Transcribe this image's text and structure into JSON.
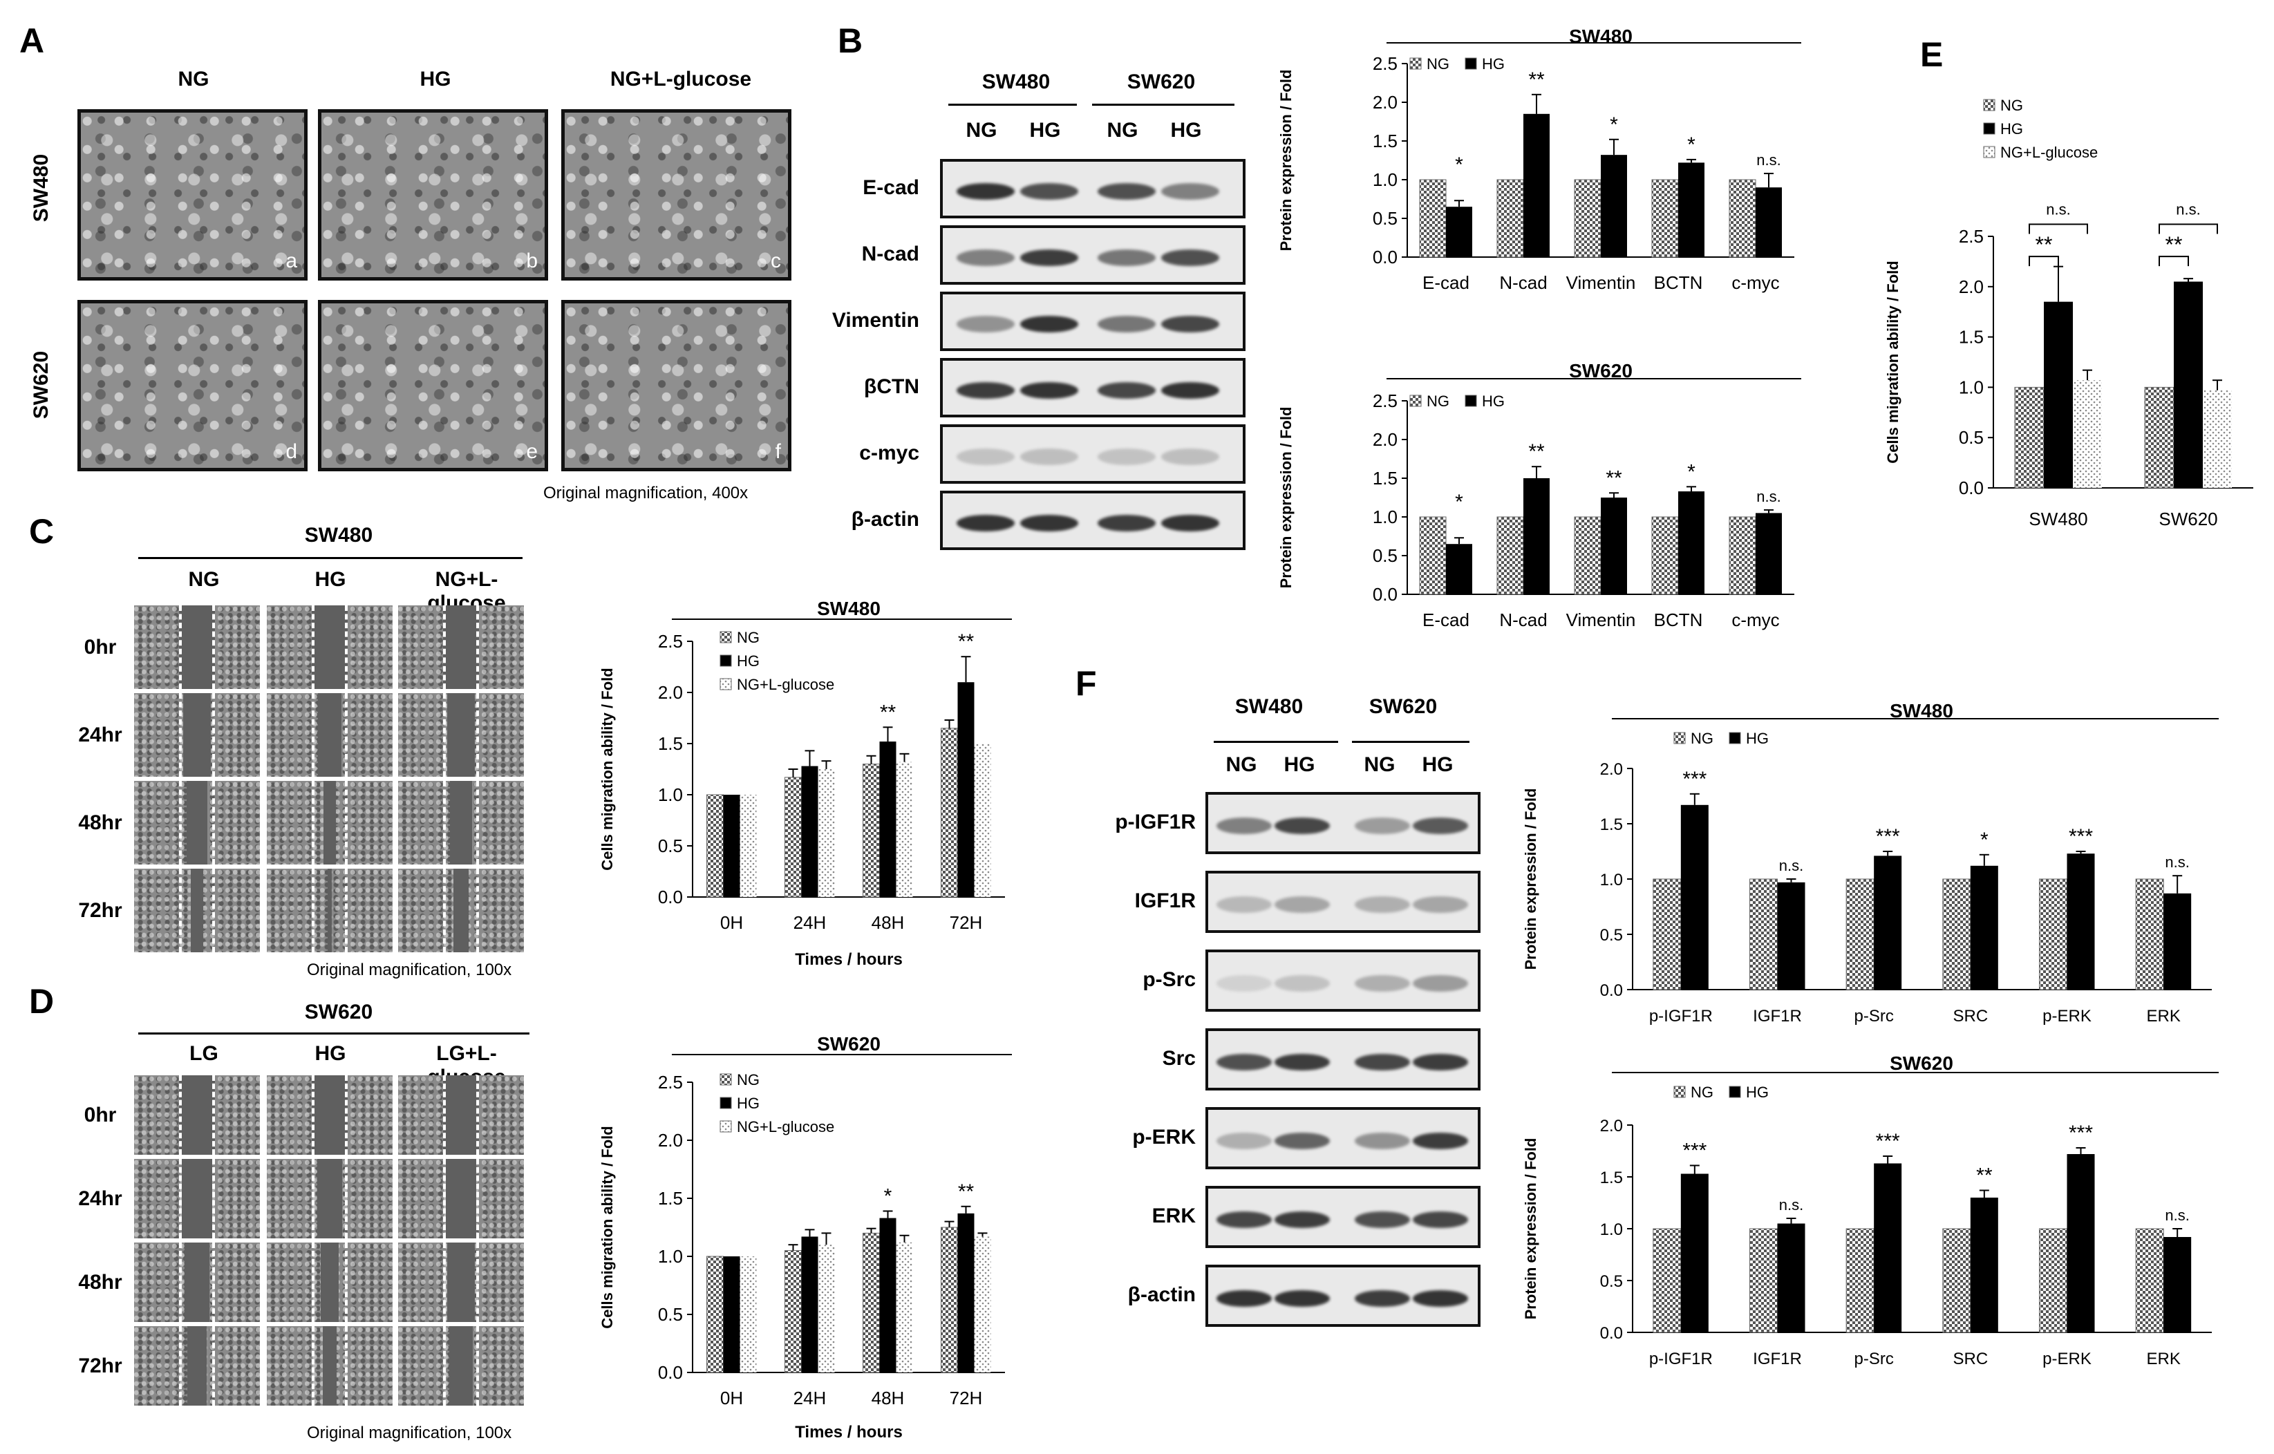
{
  "panel_letters": [
    "A",
    "B",
    "C",
    "D",
    "E",
    "F"
  ],
  "panelA": {
    "col_headers": [
      "NG",
      "HG",
      "NG+L-glucose"
    ],
    "row_headers": [
      "SW480",
      "SW620"
    ],
    "tile_letters": [
      "a",
      "b",
      "c",
      "d",
      "e",
      "f"
    ],
    "note": "Original magnification, 400x"
  },
  "panelB": {
    "groups": [
      "SW480",
      "SW620"
    ],
    "lanes": [
      "NG",
      "HG",
      "NG",
      "HG"
    ],
    "rows": [
      "E-cad",
      "N-cad",
      "Vimentin",
      "βCTN",
      "c-myc",
      "β-actin"
    ]
  },
  "panelC": {
    "title": "SW480",
    "cols": [
      "NG",
      "HG",
      "NG+L-glucose"
    ],
    "rows": [
      "0hr",
      "24hr",
      "48hr",
      "72hr"
    ],
    "note": "Original magnification, 100x"
  },
  "panelD": {
    "title": "SW620",
    "cols": [
      "LG",
      "HG",
      "LG+L-glucose"
    ],
    "rows": [
      "0hr",
      "24hr",
      "48hr",
      "72hr"
    ],
    "note": "Original magnification, 100x"
  },
  "panelF": {
    "groups": [
      "SW480",
      "SW620"
    ],
    "lanes": [
      "NG",
      "HG",
      "NG",
      "HG"
    ],
    "rows": [
      "p-IGF1R",
      "IGF1R",
      "p-Src",
      "Src",
      "p-ERK",
      "ERK",
      "β-actin"
    ]
  },
  "colors": {
    "ng_fill": "#9a9a9a",
    "hg_fill": "#000000",
    "lglu_fill": "#dcdcdc"
  },
  "chart_data": [
    {
      "id": "B-SW480",
      "type": "bar",
      "title": "SW480",
      "ylabel": "Protein expression / Fold",
      "categories": [
        "E-cad",
        "N-cad",
        "Vimentin",
        "BCTN",
        "c-myc"
      ],
      "ylim": [
        0,
        2.5
      ],
      "yticks": [
        "0.0",
        "0.5",
        "1.0",
        "1.5",
        "2.0",
        "2.5"
      ],
      "series": [
        {
          "name": "NG",
          "values": [
            1,
            1,
            1,
            1,
            1
          ]
        },
        {
          "name": "HG",
          "values": [
            0.65,
            1.85,
            1.32,
            1.22,
            0.9
          ],
          "errors": [
            0.08,
            0.25,
            0.2,
            0.04,
            0.18
          ]
        }
      ],
      "annotations": [
        "*",
        "**",
        "*",
        "*",
        "n.s."
      ]
    },
    {
      "id": "B-SW620",
      "type": "bar",
      "title": "SW620",
      "ylabel": "Protein expression / Fold",
      "categories": [
        "E-cad",
        "N-cad",
        "Vimentin",
        "BCTN",
        "c-myc"
      ],
      "ylim": [
        0,
        2.5
      ],
      "yticks": [
        "0.0",
        "0.5",
        "1.0",
        "1.5",
        "2.0",
        "2.5"
      ],
      "series": [
        {
          "name": "NG",
          "values": [
            1,
            1,
            1,
            1,
            1
          ]
        },
        {
          "name": "HG",
          "values": [
            0.65,
            1.5,
            1.25,
            1.33,
            1.05
          ],
          "errors": [
            0.08,
            0.15,
            0.06,
            0.06,
            0.04
          ]
        }
      ],
      "annotations": [
        "*",
        "**",
        "**",
        "*",
        "n.s."
      ]
    },
    {
      "id": "C",
      "type": "bar",
      "title": "SW480",
      "ylabel": "Cells migration ability / Fold",
      "xlabel": "Times / hours",
      "categories": [
        "0H",
        "24H",
        "48H",
        "72H"
      ],
      "ylim": [
        0,
        2.5
      ],
      "yticks": [
        "0.0",
        "0.5",
        "1.0",
        "1.5",
        "2.0",
        "2.5"
      ],
      "series": [
        {
          "name": "NG",
          "values": [
            1,
            1.17,
            1.3,
            1.65
          ],
          "errors": [
            0,
            0.08,
            0.08,
            0.08
          ]
        },
        {
          "name": "HG",
          "values": [
            1,
            1.28,
            1.52,
            2.1
          ],
          "errors": [
            0,
            0.15,
            0.14,
            0.25
          ]
        },
        {
          "name": "NG+L-glucose",
          "values": [
            1,
            1.25,
            1.32,
            1.5
          ],
          "errors": [
            0,
            0.08,
            0.08,
            0
          ]
        }
      ],
      "annotations": [
        "",
        "",
        "**",
        "**"
      ]
    },
    {
      "id": "D",
      "type": "bar",
      "title": "SW620",
      "ylabel": "Cells migration ability / Fold",
      "xlabel": "Times / hours",
      "categories": [
        "0H",
        "24H",
        "48H",
        "72H"
      ],
      "ylim": [
        0,
        2.5
      ],
      "yticks": [
        "0.0",
        "0.5",
        "1.0",
        "1.5",
        "2.0",
        "2.5"
      ],
      "series": [
        {
          "name": "NG",
          "values": [
            1,
            1.05,
            1.2,
            1.25
          ],
          "errors": [
            0,
            0.05,
            0.04,
            0.05
          ]
        },
        {
          "name": "HG",
          "values": [
            1,
            1.17,
            1.33,
            1.37
          ],
          "errors": [
            0,
            0.06,
            0.06,
            0.06
          ]
        },
        {
          "name": "NG+L-glucose",
          "values": [
            1,
            1.1,
            1.12,
            1.17
          ],
          "errors": [
            0,
            0.1,
            0.06,
            0.03
          ]
        }
      ],
      "annotations": [
        "",
        "",
        "*",
        "**"
      ]
    },
    {
      "id": "E",
      "type": "bar",
      "ylabel": "Cells migration ability / Fold",
      "categories": [
        "SW480",
        "SW620"
      ],
      "ylim": [
        0,
        2.5
      ],
      "yticks": [
        "0.0",
        "0.5",
        "1.0",
        "1.5",
        "2.0",
        "2.5"
      ],
      "series": [
        {
          "name": "NG",
          "values": [
            1,
            1
          ]
        },
        {
          "name": "HG",
          "values": [
            1.85,
            2.05
          ],
          "errors": [
            0.35,
            0.03
          ]
        },
        {
          "name": "NG+L-glucose",
          "values": [
            1.07,
            0.97
          ],
          "errors": [
            0.1,
            0.1
          ]
        }
      ],
      "annotations": [
        "**",
        "**"
      ],
      "bracket_labels": [
        "n.s.",
        "n.s."
      ]
    },
    {
      "id": "F-SW480",
      "type": "bar",
      "title": "SW480",
      "ylabel": "Protein expression / Fold",
      "categories": [
        "p-IGF1R",
        "IGF1R",
        "p-Src",
        "SRC",
        "p-ERK",
        "ERK"
      ],
      "ylim": [
        0,
        2.0
      ],
      "yticks": [
        "0.0",
        "0.5",
        "1.0",
        "1.5",
        "2.0"
      ],
      "series": [
        {
          "name": "NG",
          "values": [
            1,
            1,
            1,
            1,
            1,
            1
          ]
        },
        {
          "name": "HG",
          "values": [
            1.67,
            0.97,
            1.21,
            1.12,
            1.23,
            0.87
          ],
          "errors": [
            0.1,
            0.03,
            0.04,
            0.1,
            0.02,
            0.16
          ]
        }
      ],
      "annotations": [
        "***",
        "n.s.",
        "***",
        "*",
        "***",
        "n.s."
      ]
    },
    {
      "id": "F-SW620",
      "type": "bar",
      "title": "SW620",
      "ylabel": "Protein expression / Fold",
      "categories": [
        "p-IGF1R",
        "IGF1R",
        "p-Src",
        "SRC",
        "p-ERK",
        "ERK"
      ],
      "ylim": [
        0,
        2.0
      ],
      "yticks": [
        "0.0",
        "0.5",
        "1.0",
        "1.5",
        "2.0"
      ],
      "series": [
        {
          "name": "NG",
          "values": [
            1,
            1,
            1,
            1,
            1,
            1
          ]
        },
        {
          "name": "HG",
          "values": [
            1.53,
            1.05,
            1.63,
            1.3,
            1.72,
            0.92
          ],
          "errors": [
            0.08,
            0.05,
            0.07,
            0.07,
            0.06,
            0.08
          ]
        }
      ],
      "annotations": [
        "***",
        "n.s.",
        "***",
        "**",
        "***",
        "n.s."
      ]
    }
  ]
}
